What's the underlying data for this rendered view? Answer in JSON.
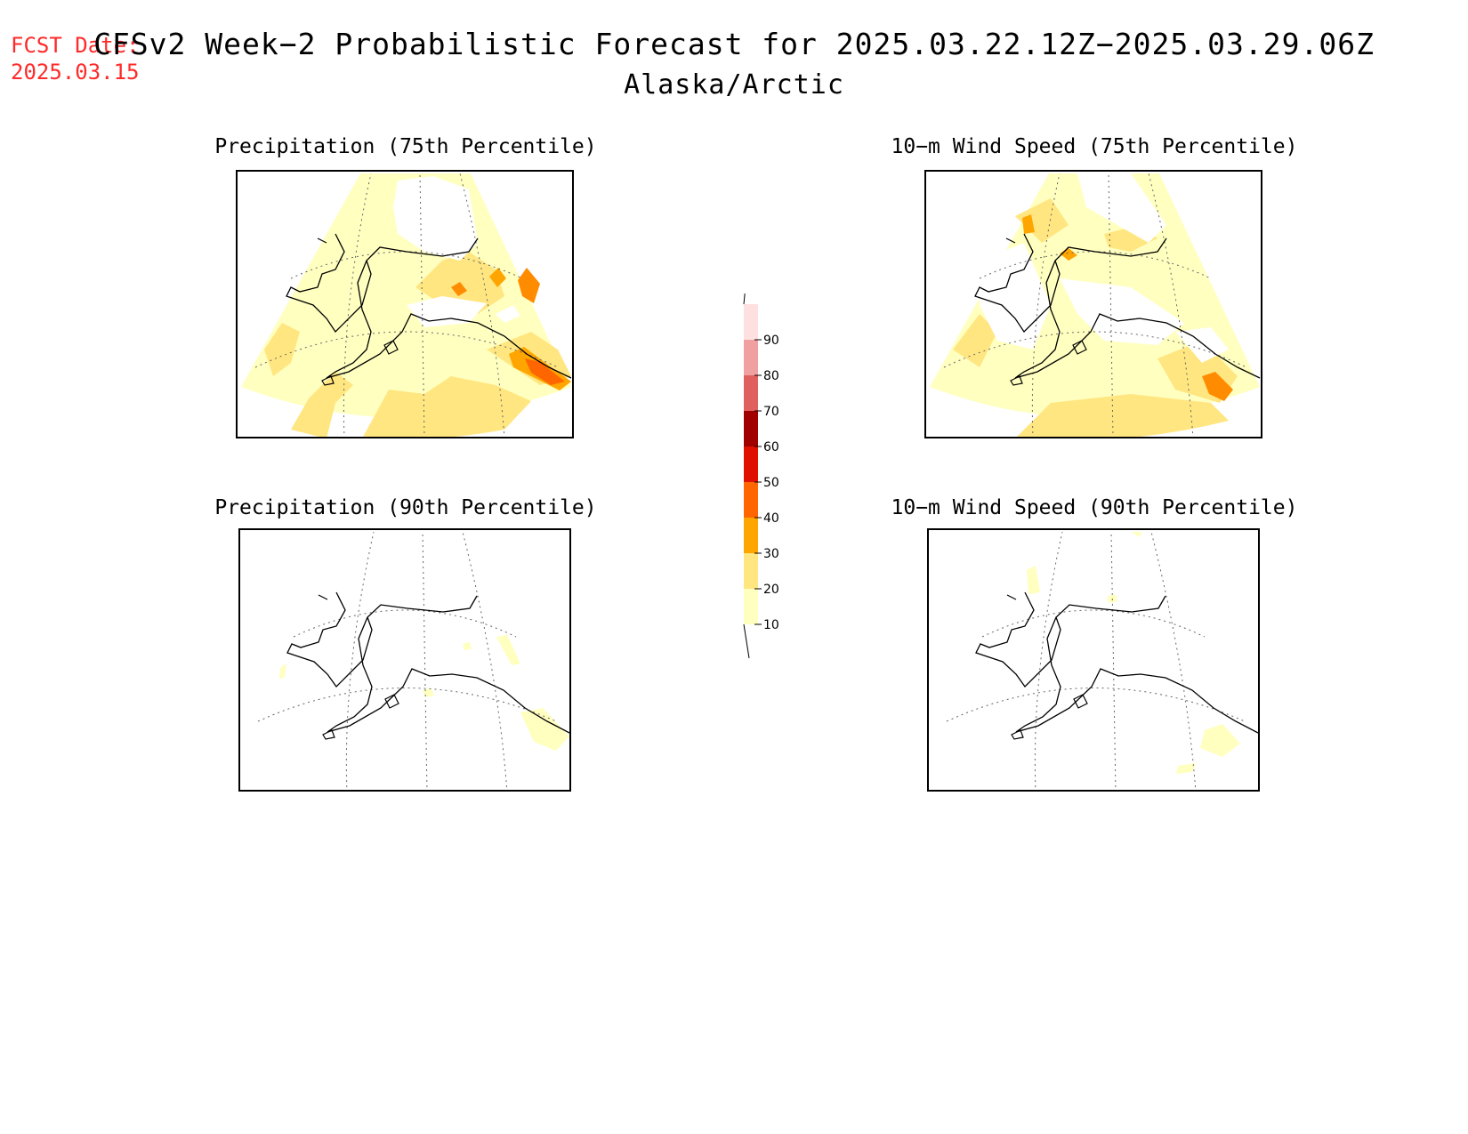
{
  "header": {
    "fcst_label": "FCST Date:",
    "fcst_date": "2025.03.15",
    "title": "CFSv2 Week−2 Probabilistic Forecast for 2025.03.22.12Z−2025.03.29.06Z",
    "region": "Alaska/Arctic"
  },
  "panels": [
    {
      "title": "Precipitation (75th Percentile)"
    },
    {
      "title": "10−m Wind Speed (75th Percentile)"
    },
    {
      "title": "Precipitation (90th Percentile)"
    },
    {
      "title": "10−m Wind Speed (90th Percentile)"
    }
  ],
  "colorbar": {
    "levels": [
      "10",
      "20",
      "30",
      "40",
      "50",
      "60",
      "70",
      "80",
      "90"
    ],
    "colors": [
      "#ffffc0",
      "#ffe680",
      "#ffa500",
      "#ff6600",
      "#e01000",
      "#a00000",
      "#e06060",
      "#f0a0a0",
      "#ffe0e0"
    ]
  }
}
